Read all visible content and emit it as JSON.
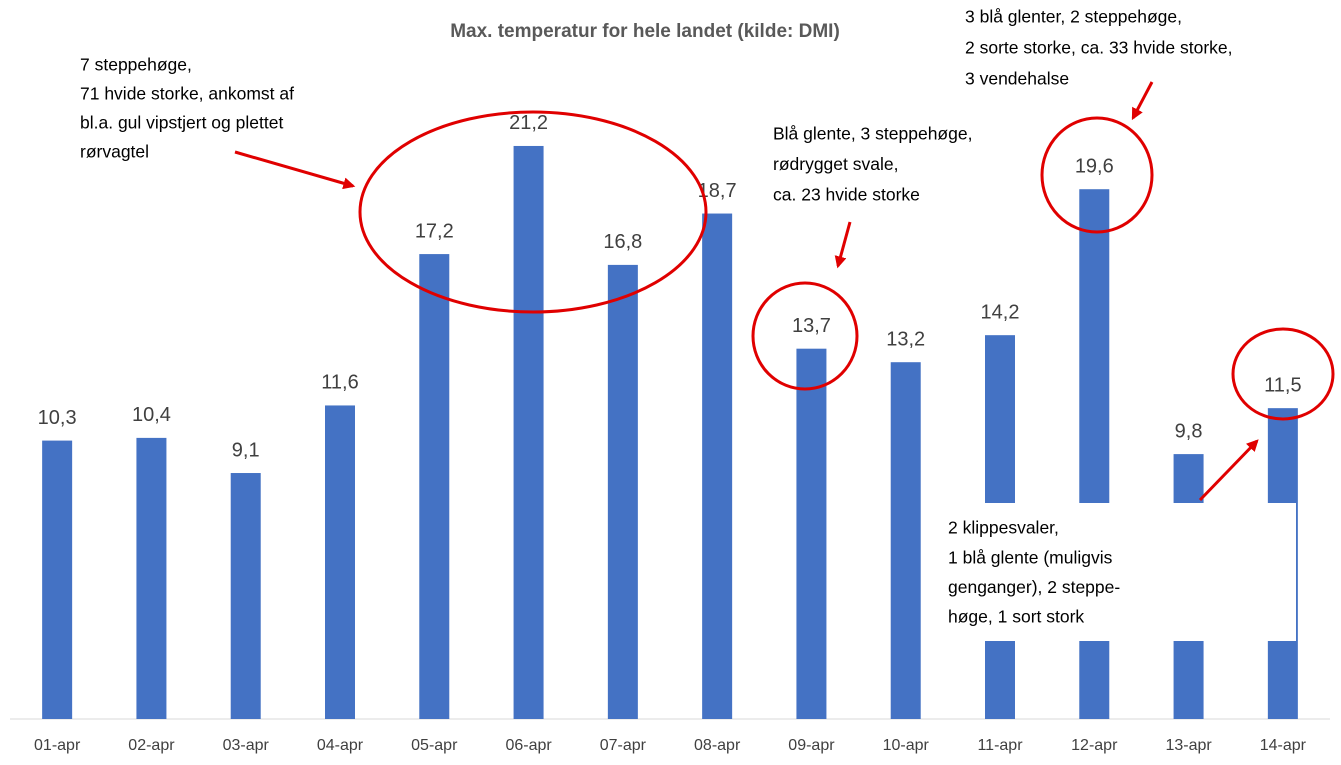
{
  "chart_data": {
    "type": "bar",
    "title": "Max. temperatur for hele landet (kilde: DMI)",
    "categories": [
      "01-apr",
      "02-apr",
      "03-apr",
      "04-apr",
      "05-apr",
      "06-apr",
      "07-apr",
      "08-apr",
      "09-apr",
      "10-apr",
      "11-apr",
      "12-apr",
      "13-apr",
      "14-apr"
    ],
    "values": [
      10.3,
      10.4,
      9.1,
      11.6,
      17.2,
      21.2,
      16.8,
      18.7,
      13.7,
      13.2,
      14.2,
      19.6,
      9.8,
      11.5
    ],
    "value_labels": [
      "10,3",
      "10,4",
      "9,1",
      "11,6",
      "17,2",
      "21,2",
      "16,8",
      "18,7",
      "13,7",
      "13,2",
      "14,2",
      "19,6",
      "9,8",
      "11,5"
    ],
    "color": "#4472c4",
    "ylim": [
      0,
      26.6
    ],
    "annotations": [
      {
        "lines": [
          "7 steppehøge,",
          "71 hvide storke, ankomst af",
          "bl.a. gul vipstjert og plettet",
          "rørvagtel"
        ]
      },
      {
        "lines": [
          "Blå glente, 3 steppehøge,",
          "rødrygget svale,",
          "ca. 23 hvide storke"
        ]
      },
      {
        "lines": [
          "3 blå glenter, 2 steppehøge,",
          "2 sorte storke, ca. 33 hvide storke,",
          "3 vendehalse"
        ]
      },
      {
        "lines": [
          "2 klippesvaler,",
          "1 blå glente (muligvis",
          "genganger), 2 steppe-",
          "høge, 1 sort stork"
        ]
      }
    ]
  }
}
